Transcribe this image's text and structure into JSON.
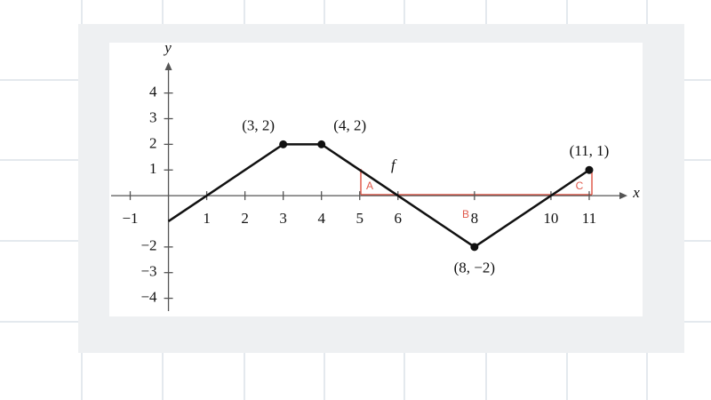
{
  "chart_data": {
    "type": "line",
    "x": [
      0,
      3,
      4,
      8,
      11
    ],
    "values": [
      -1,
      2,
      2,
      -2,
      1
    ],
    "point_labels": [
      null,
      "(3, 2)",
      "(4, 2)",
      "(8, −2)",
      "(11, 1)"
    ],
    "color": "#111111",
    "function_label": "f",
    "xlabel": "x",
    "ylabel": "y",
    "region_labels": [
      "A",
      "B",
      "C"
    ],
    "xlim": [
      -1.5,
      12
    ],
    "ylim": [
      -4.5,
      5.2
    ],
    "xticks": [
      {
        "value": -1,
        "label": "−1"
      },
      1,
      2,
      3,
      4,
      5,
      6,
      8,
      10,
      11
    ],
    "yticks": [
      4,
      3,
      2,
      1,
      {
        "value": -2,
        "label": "−2"
      },
      {
        "value": -3,
        "label": "−3"
      },
      {
        "value": -4,
        "label": "−4"
      }
    ]
  }
}
